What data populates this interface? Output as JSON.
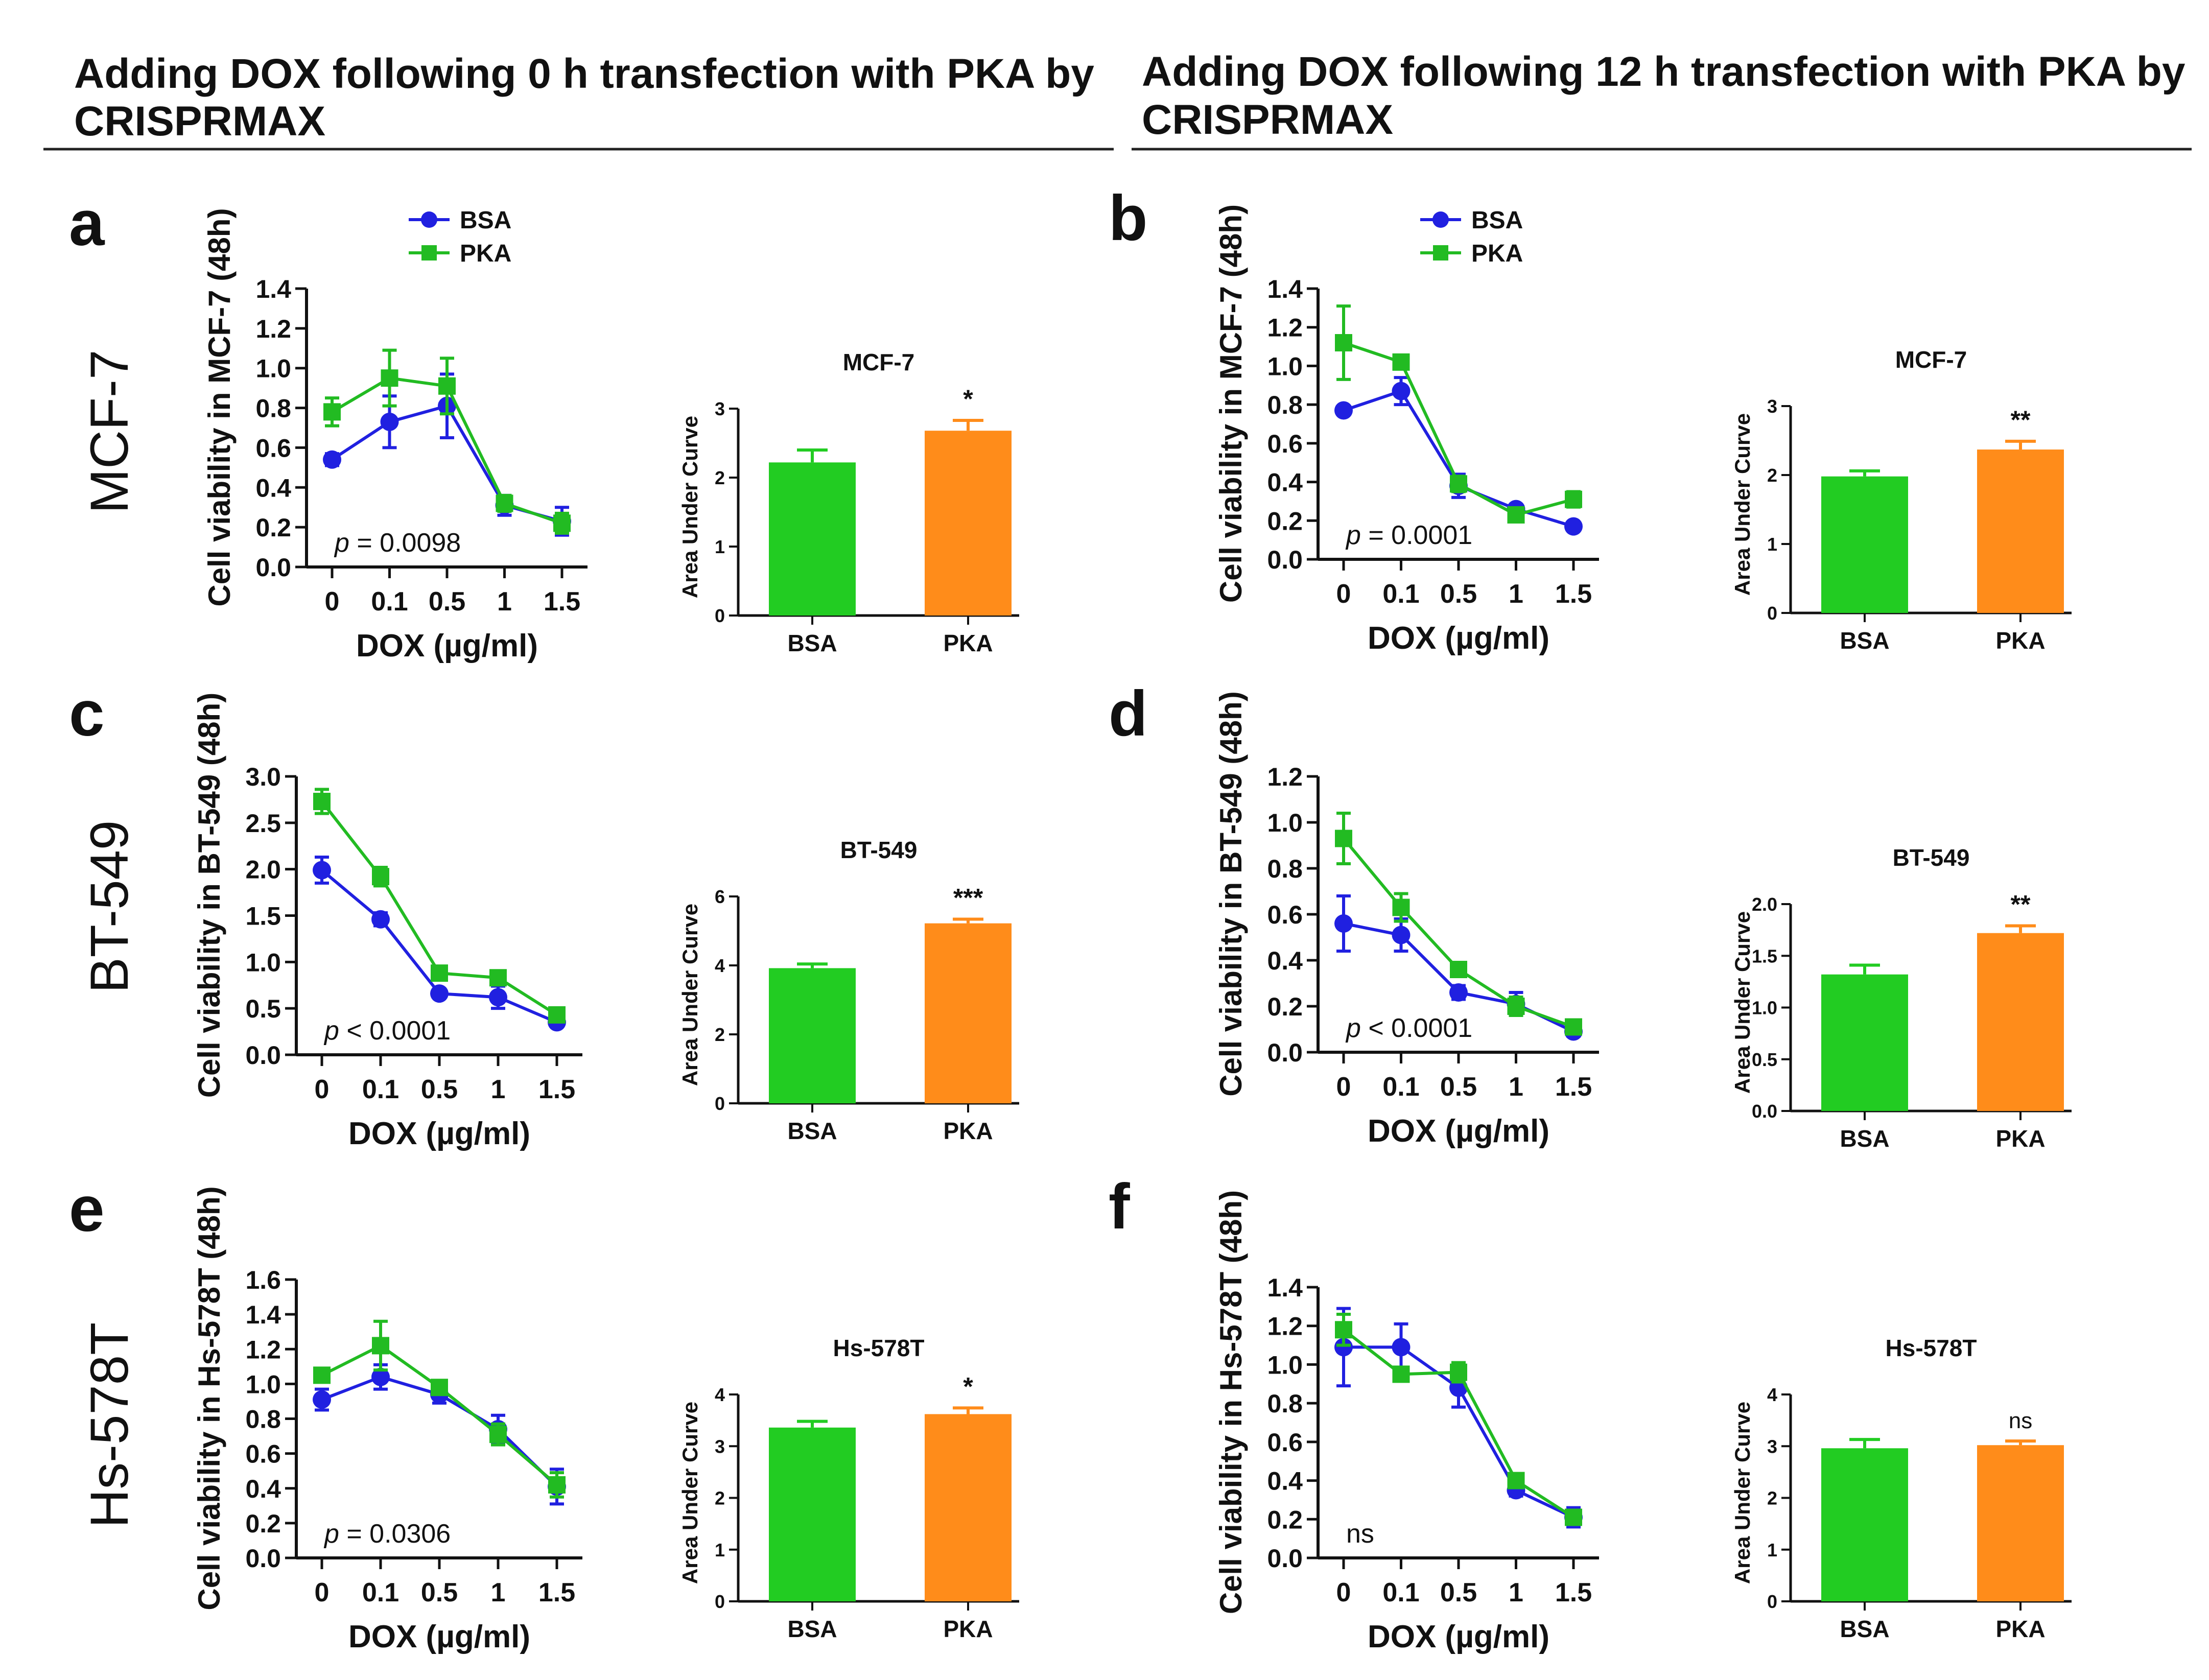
{
  "headers": {
    "left": [
      "Adding DOX following 0 h transfection with PKA by",
      "CRISPRMAX"
    ],
    "right": [
      "Adding DOX following 12 h transfection with PKA by",
      "CRISPRMAX"
    ]
  },
  "row_labels": [
    "MCF-7",
    "BT-549",
    "Hs-578T"
  ],
  "colors": {
    "BSA": "#2020e0",
    "PKA": "#22bb22",
    "bar_BSA": "#22cc22",
    "bar_PKA": "#ff8c1a",
    "text": "#111111"
  },
  "chart_data": [
    {
      "panel": "a",
      "type": "line",
      "cell_line": "MCF-7",
      "ylabel": "Cell viability in MCF-7 (48h)",
      "xlabel": "DOX (µg/ml)",
      "x": [
        "0",
        "0.1",
        "0.5",
        "1",
        "1.5"
      ],
      "ylim": [
        0,
        1.4
      ],
      "yticks": [
        "0.0",
        "0.2",
        "0.4",
        "0.6",
        "0.8",
        "1.0",
        "1.2",
        "1.4"
      ],
      "series": [
        {
          "name": "BSA",
          "values": [
            0.54,
            0.73,
            0.81,
            0.31,
            0.23
          ],
          "errors": [
            0.03,
            0.13,
            0.16,
            0.05,
            0.07
          ]
        },
        {
          "name": "PKA",
          "values": [
            0.78,
            0.95,
            0.91,
            0.32,
            0.22
          ],
          "errors": [
            0.07,
            0.14,
            0.14,
            0.04,
            0.05
          ]
        }
      ],
      "legend": [
        "BSA",
        "PKA"
      ],
      "annotation": {
        "prefix": "p",
        "rest": " = 0.0098"
      }
    },
    {
      "panel": "a",
      "type": "bar",
      "title": "MCF-7",
      "ylabel": "Area Under Curve",
      "categories": [
        "BSA",
        "PKA"
      ],
      "values": [
        2.22,
        2.68
      ],
      "errors": [
        0.18,
        0.15
      ],
      "ylim": [
        0,
        3
      ],
      "yticks": [
        "0",
        "1",
        "2",
        "3"
      ],
      "significance": "*"
    },
    {
      "panel": "b",
      "type": "line",
      "cell_line": "MCF-7",
      "ylabel": "Cell viability in MCF-7 (48h)",
      "xlabel": "DOX (µg/ml)",
      "x": [
        "0",
        "0.1",
        "0.5",
        "1",
        "1.5"
      ],
      "ylim": [
        0,
        1.4
      ],
      "yticks": [
        "0.0",
        "0.2",
        "0.4",
        "0.6",
        "0.8",
        "1.0",
        "1.2",
        "1.4"
      ],
      "series": [
        {
          "name": "BSA",
          "values": [
            0.77,
            0.87,
            0.38,
            0.26,
            0.17
          ],
          "errors": [
            0.02,
            0.07,
            0.06,
            0.02,
            0.02
          ]
        },
        {
          "name": "PKA",
          "values": [
            1.12,
            1.02,
            0.39,
            0.23,
            0.31
          ],
          "errors": [
            0.19,
            0.02,
            0.04,
            0.02,
            0.04
          ]
        }
      ],
      "legend": [
        "BSA",
        "PKA"
      ],
      "annotation": {
        "prefix": "p",
        "rest": " = 0.0001"
      }
    },
    {
      "panel": "b",
      "type": "bar",
      "title": "MCF-7",
      "ylabel": "Area Under Curve",
      "categories": [
        "BSA",
        "PKA"
      ],
      "values": [
        1.98,
        2.37
      ],
      "errors": [
        0.08,
        0.12
      ],
      "ylim": [
        0,
        3
      ],
      "yticks": [
        "0",
        "1",
        "2",
        "3"
      ],
      "significance": "**"
    },
    {
      "panel": "c",
      "type": "line",
      "cell_line": "BT-549",
      "ylabel": "Cell viability in BT-549 (48h)",
      "xlabel": "DOX (µg/ml)",
      "x": [
        "0",
        "0.1",
        "0.5",
        "1",
        "1.5"
      ],
      "ylim": [
        0,
        3.0
      ],
      "yticks": [
        "0.0",
        "0.5",
        "1.0",
        "1.5",
        "2.0",
        "2.5",
        "3.0"
      ],
      "series": [
        {
          "name": "BSA",
          "values": [
            1.99,
            1.46,
            0.66,
            0.62,
            0.35
          ],
          "errors": [
            0.14,
            0.07,
            0.03,
            0.12,
            0.04
          ]
        },
        {
          "name": "PKA",
          "values": [
            2.73,
            1.92,
            0.88,
            0.83,
            0.43
          ],
          "errors": [
            0.13,
            0.1,
            0.03,
            0.06,
            0.04
          ]
        }
      ],
      "annotation": {
        "prefix": "p",
        "rest": " < 0.0001"
      }
    },
    {
      "panel": "c",
      "type": "bar",
      "title": "BT-549",
      "ylabel": "Area Under Curve",
      "categories": [
        "BSA",
        "PKA"
      ],
      "values": [
        3.92,
        5.22
      ],
      "errors": [
        0.12,
        0.12
      ],
      "ylim": [
        0,
        6
      ],
      "yticks": [
        "0",
        "2",
        "4",
        "6"
      ],
      "significance": "***"
    },
    {
      "panel": "d",
      "type": "line",
      "cell_line": "BT-549",
      "ylabel": "Cell viability in BT-549 (48h)",
      "xlabel": "DOX (µg/ml)",
      "x": [
        "0",
        "0.1",
        "0.5",
        "1",
        "1.5"
      ],
      "ylim": [
        0,
        1.2
      ],
      "yticks": [
        "0.0",
        "0.2",
        "0.4",
        "0.6",
        "0.8",
        "1.0",
        "1.2"
      ],
      "series": [
        {
          "name": "BSA",
          "values": [
            0.56,
            0.51,
            0.26,
            0.21,
            0.09
          ],
          "errors": [
            0.12,
            0.07,
            0.03,
            0.05,
            0.02
          ]
        },
        {
          "name": "PKA",
          "values": [
            0.93,
            0.63,
            0.36,
            0.2,
            0.11
          ],
          "errors": [
            0.11,
            0.06,
            0.03,
            0.04,
            0.02
          ]
        }
      ],
      "annotation": {
        "prefix": "p",
        "rest": " < 0.0001"
      }
    },
    {
      "panel": "d",
      "type": "bar",
      "title": "BT-549",
      "ylabel": "Area Under Curve",
      "categories": [
        "BSA",
        "PKA"
      ],
      "values": [
        1.32,
        1.72
      ],
      "errors": [
        0.09,
        0.07
      ],
      "ylim": [
        0,
        2.0
      ],
      "yticks": [
        "0.0",
        "0.5",
        "1.0",
        "1.5",
        "2.0"
      ],
      "significance": "**"
    },
    {
      "panel": "e",
      "type": "line",
      "cell_line": "Hs-578T",
      "ylabel": "Cell viability in Hs-578T (48h)",
      "xlabel": "DOX (µg/ml)",
      "x": [
        "0",
        "0.1",
        "0.5",
        "1",
        "1.5"
      ],
      "ylim": [
        0,
        1.6
      ],
      "yticks": [
        "0.0",
        "0.2",
        "0.4",
        "0.6",
        "0.8",
        "1.0",
        "1.2",
        "1.4",
        "1.6"
      ],
      "series": [
        {
          "name": "BSA",
          "values": [
            0.91,
            1.04,
            0.94,
            0.74,
            0.41
          ],
          "errors": [
            0.06,
            0.07,
            0.05,
            0.08,
            0.1
          ]
        },
        {
          "name": "PKA",
          "values": [
            1.05,
            1.22,
            0.98,
            0.71,
            0.42
          ],
          "errors": [
            0.03,
            0.14,
            0.04,
            0.06,
            0.07
          ]
        }
      ],
      "annotation": {
        "prefix": "p",
        "rest": " = 0.0306"
      }
    },
    {
      "panel": "e",
      "type": "bar",
      "title": "Hs-578T",
      "ylabel": "Area Under Curve",
      "categories": [
        "BSA",
        "PKA"
      ],
      "values": [
        3.36,
        3.62
      ],
      "errors": [
        0.12,
        0.12
      ],
      "ylim": [
        0,
        4
      ],
      "yticks": [
        "0",
        "1",
        "2",
        "3",
        "4"
      ],
      "significance": "*"
    },
    {
      "panel": "f",
      "type": "line",
      "cell_line": "Hs-578T",
      "ylabel": "Cell viability in Hs-578T (48h)",
      "xlabel": "DOX (µg/ml)",
      "x": [
        "0",
        "0.1",
        "0.5",
        "1",
        "1.5"
      ],
      "ylim": [
        0,
        1.4
      ],
      "yticks": [
        "0.0",
        "0.2",
        "0.4",
        "0.6",
        "0.8",
        "1.0",
        "1.2",
        "1.4"
      ],
      "series": [
        {
          "name": "BSA",
          "values": [
            1.09,
            1.09,
            0.88,
            0.35,
            0.21
          ],
          "errors": [
            0.2,
            0.12,
            0.1,
            0.03,
            0.05
          ]
        },
        {
          "name": "PKA",
          "values": [
            1.18,
            0.95,
            0.96,
            0.4,
            0.21
          ],
          "errors": [
            0.08,
            0.03,
            0.05,
            0.03,
            0.03
          ]
        }
      ],
      "annotation": {
        "prefix": "",
        "rest": "ns"
      }
    },
    {
      "panel": "f",
      "type": "bar",
      "title": "Hs-578T",
      "ylabel": "Area Under Curve",
      "categories": [
        "BSA",
        "PKA"
      ],
      "values": [
        2.96,
        3.02
      ],
      "errors": [
        0.17,
        0.08
      ],
      "ylim": [
        0,
        4
      ],
      "yticks": [
        "0",
        "1",
        "2",
        "3",
        "4"
      ],
      "significance": "ns"
    }
  ]
}
